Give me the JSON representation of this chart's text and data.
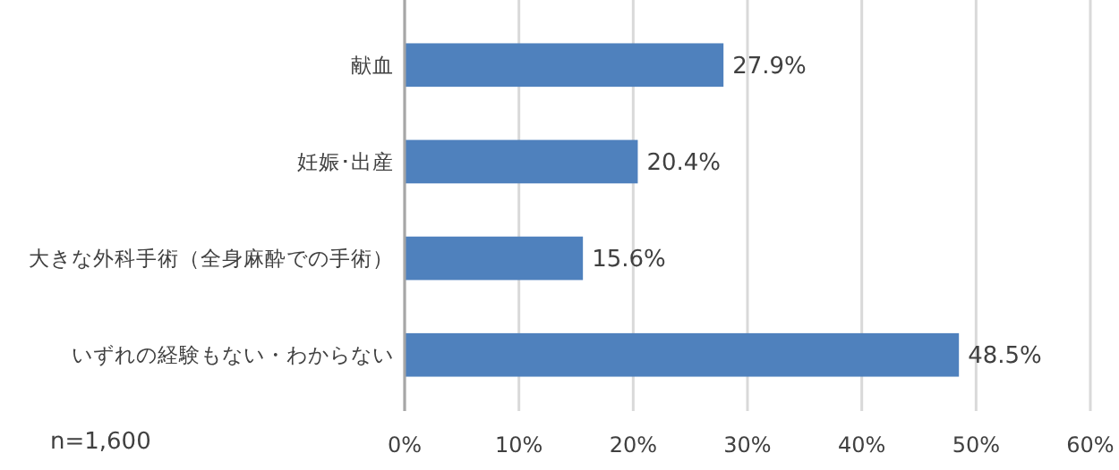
{
  "chart_data": {
    "type": "bar",
    "orientation": "horizontal",
    "categories": [
      "献血",
      "妊娠･出産",
      "大きな外科手術（全身麻酔での手術）",
      "いずれの経験もない・わからない"
    ],
    "values": [
      27.9,
      20.4,
      15.6,
      48.5
    ],
    "color": "#4f81bd",
    "value_labels": [
      "27.9%",
      "20.4%",
      "15.6%",
      "48.5%"
    ],
    "xlim": [
      0,
      60
    ],
    "xticks": [
      {
        "value": 0,
        "label": "0%"
      },
      {
        "value": 10,
        "label": "10%"
      },
      {
        "value": 20,
        "label": "20%"
      },
      {
        "value": 30,
        "label": "30%"
      },
      {
        "value": 40,
        "label": "40%"
      },
      {
        "value": 50,
        "label": "50%"
      },
      {
        "value": 60,
        "label": "60%"
      }
    ],
    "grid": "x",
    "annotations": [
      "n=1,600"
    ]
  }
}
